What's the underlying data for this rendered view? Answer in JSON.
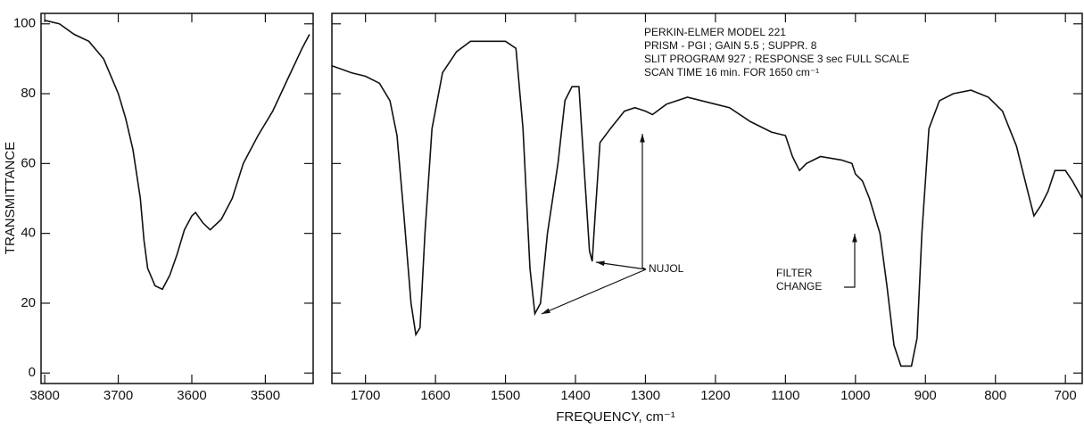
{
  "chart_data": [
    {
      "type": "line",
      "y_label": "TRANSMITTANCE",
      "color": "#111111",
      "x": [
        3800,
        3780,
        3760,
        3740,
        3720,
        3700,
        3690,
        3680,
        3670,
        3665,
        3660,
        3650,
        3640,
        3630,
        3620,
        3610,
        3600,
        3595,
        3585,
        3575,
        3560,
        3545,
        3530,
        3510,
        3490,
        3470,
        3450,
        3440
      ],
      "values": [
        101,
        100,
        97,
        95,
        90,
        80,
        73,
        64,
        50,
        38,
        30,
        25,
        24,
        28,
        34,
        41,
        45,
        46,
        43,
        41,
        44,
        50,
        60,
        68,
        75,
        84,
        93,
        97
      ],
      "xlim": [
        3805,
        3435
      ],
      "xticks": [
        3800,
        3700,
        3600,
        3500
      ],
      "ylim": [
        -3,
        103
      ],
      "yticks": [
        0,
        20,
        40,
        60,
        80,
        100
      ]
    },
    {
      "type": "line",
      "x_label": "FREQUENCY, cm⁻¹",
      "color": "#111111",
      "x": [
        1748,
        1720,
        1700,
        1680,
        1665,
        1655,
        1645,
        1635,
        1628,
        1622,
        1615,
        1605,
        1590,
        1570,
        1550,
        1520,
        1500,
        1485,
        1475,
        1465,
        1458,
        1450,
        1440,
        1425,
        1415,
        1405,
        1395,
        1388,
        1380,
        1376,
        1372,
        1365,
        1350,
        1330,
        1315,
        1300,
        1290,
        1270,
        1240,
        1200,
        1180,
        1150,
        1120,
        1100,
        1090,
        1080,
        1070,
        1050,
        1020,
        1005,
        1000,
        990,
        980,
        965,
        955,
        945,
        935,
        920,
        912,
        905,
        895,
        880,
        860,
        835,
        810,
        790,
        770,
        755,
        745,
        735,
        725,
        715,
        700,
        690,
        676
      ],
      "values": [
        88,
        86,
        85,
        83,
        78,
        68,
        45,
        20,
        11,
        13,
        40,
        70,
        86,
        92,
        95,
        95,
        95,
        93,
        70,
        30,
        17,
        20,
        40,
        60,
        78,
        82,
        82,
        60,
        35,
        32,
        45,
        66,
        70,
        75,
        76,
        75,
        74,
        77,
        79,
        77,
        76,
        72,
        69,
        68,
        62,
        58,
        60,
        62,
        61,
        60,
        57,
        55,
        50,
        40,
        25,
        8,
        2,
        2,
        10,
        40,
        70,
        78,
        80,
        81,
        79,
        75,
        65,
        53,
        45,
        48,
        52,
        58,
        58,
        55,
        50
      ],
      "xlim": [
        1748,
        676
      ],
      "xticks": [
        1700,
        1600,
        1500,
        1400,
        1300,
        1200,
        1100,
        1000,
        900,
        800,
        700
      ],
      "ylim": [
        -3,
        103
      ],
      "annotations": [
        "PERKIN-ELMER MODEL 221",
        "PRISM - PGI ;  GAIN 5.5 ; SUPPR. 8",
        "SLIT PROGRAM 927 ; RESPONSE 3 sec FULL SCALE",
        "SCAN TIME 16 min. FOR 1650 cm⁻¹",
        "NUJOL",
        "FILTER",
        "CHANGE"
      ]
    }
  ]
}
